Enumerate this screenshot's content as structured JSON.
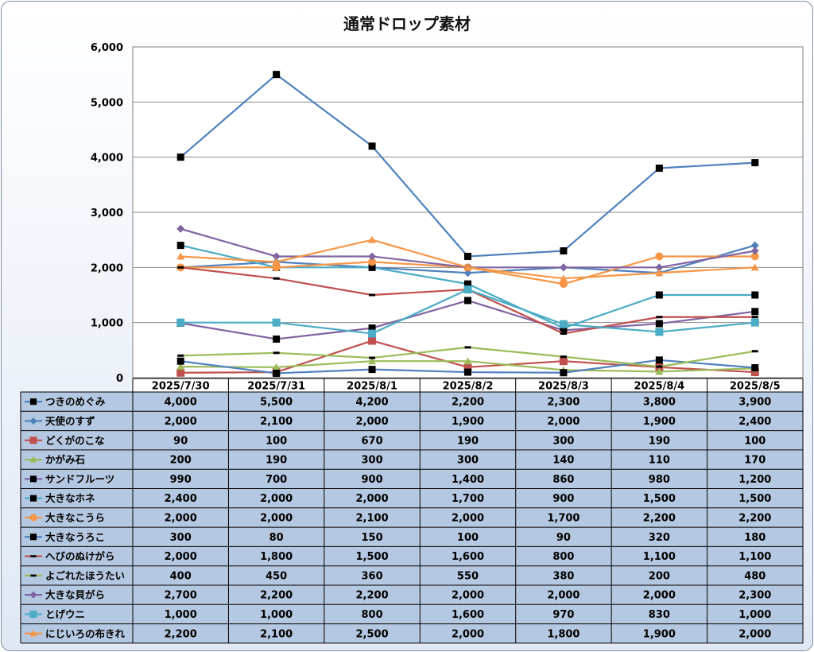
{
  "chart_data": {
    "type": "line",
    "title": "通常ドロップ素材",
    "xlabel": "",
    "ylabel": "",
    "ylim": [
      0,
      6000
    ],
    "yticks": [
      "0",
      "1,000",
      "2,000",
      "3,000",
      "4,000",
      "5,000",
      "6,000"
    ],
    "grid": true,
    "legend": "data-table",
    "categories": [
      "2025/7/30",
      "2025/7/31",
      "2025/8/1",
      "2025/8/2",
      "2025/8/3",
      "2025/8/4",
      "2025/8/5"
    ],
    "series": [
      {
        "name": "つきのめぐみ",
        "color": "#4f81bd",
        "marker": "square-black",
        "values": [
          4000,
          5500,
          4200,
          2200,
          2300,
          3800,
          3900
        ],
        "labels": [
          "4,000",
          "5,500",
          "4,200",
          "2,200",
          "2,300",
          "3,800",
          "3,900"
        ]
      },
      {
        "name": "天使のすず",
        "color": "#4f81bd",
        "marker": "diamond",
        "values": [
          2000,
          2100,
          2000,
          1900,
          2000,
          1900,
          2400
        ],
        "labels": [
          "2,000",
          "2,100",
          "2,000",
          "1,900",
          "2,000",
          "1,900",
          "2,400"
        ]
      },
      {
        "name": "どくがのこな",
        "color": "#c0504d",
        "marker": "square",
        "values": [
          90,
          100,
          670,
          190,
          300,
          190,
          100
        ],
        "labels": [
          "90",
          "100",
          "670",
          "190",
          "300",
          "190",
          "100"
        ]
      },
      {
        "name": "かがみ石",
        "color": "#9bbb59",
        "marker": "triangle",
        "values": [
          200,
          190,
          300,
          300,
          140,
          110,
          170
        ],
        "labels": [
          "200",
          "190",
          "300",
          "300",
          "140",
          "110",
          "170"
        ]
      },
      {
        "name": "サンドフルーツ",
        "color": "#8064a2",
        "marker": "square-black",
        "values": [
          990,
          700,
          900,
          1400,
          860,
          980,
          1200
        ],
        "labels": [
          "990",
          "700",
          "900",
          "1,400",
          "860",
          "980",
          "1,200"
        ]
      },
      {
        "name": "大きなホネ",
        "color": "#4bacc6",
        "marker": "square-black",
        "values": [
          2400,
          2000,
          2000,
          1700,
          900,
          1500,
          1500
        ],
        "labels": [
          "2,400",
          "2,000",
          "2,000",
          "1,700",
          "900",
          "1,500",
          "1,500"
        ]
      },
      {
        "name": "大きなこうら",
        "color": "#f79646",
        "marker": "circle",
        "values": [
          2000,
          2000,
          2100,
          2000,
          1700,
          2200,
          2200
        ],
        "labels": [
          "2,000",
          "2,000",
          "2,100",
          "2,000",
          "1,700",
          "2,200",
          "2,200"
        ]
      },
      {
        "name": "大きなうろこ",
        "color": "#4f81bd",
        "marker": "square-black",
        "values": [
          300,
          80,
          150,
          100,
          90,
          320,
          180
        ],
        "labels": [
          "300",
          "80",
          "150",
          "100",
          "90",
          "320",
          "180"
        ]
      },
      {
        "name": "へびのぬけがら",
        "color": "#c0504d",
        "marker": "dash-black",
        "values": [
          2000,
          1800,
          1500,
          1600,
          800,
          1100,
          1100
        ],
        "labels": [
          "2,000",
          "1,800",
          "1,500",
          "1,600",
          "800",
          "1,100",
          "1,100"
        ]
      },
      {
        "name": "よごれたほうたい",
        "color": "#9bbb59",
        "marker": "dash-black",
        "values": [
          400,
          450,
          360,
          550,
          380,
          200,
          480
        ],
        "labels": [
          "400",
          "450",
          "360",
          "550",
          "380",
          "200",
          "480"
        ]
      },
      {
        "name": "大きな貝がら",
        "color": "#8064a2",
        "marker": "diamond",
        "values": [
          2700,
          2200,
          2200,
          2000,
          2000,
          2000,
          2300
        ],
        "labels": [
          "2,700",
          "2,200",
          "2,200",
          "2,000",
          "2,000",
          "2,000",
          "2,300"
        ]
      },
      {
        "name": "とげウニ",
        "color": "#4bacc6",
        "marker": "square",
        "values": [
          1000,
          1000,
          800,
          1600,
          970,
          830,
          1000
        ],
        "labels": [
          "1,000",
          "1,000",
          "800",
          "1,600",
          "970",
          "830",
          "1,000"
        ]
      },
      {
        "name": "にじいろの布きれ",
        "color": "#f79646",
        "marker": "triangle",
        "values": [
          2200,
          2100,
          2500,
          2000,
          1800,
          1900,
          2000
        ],
        "labels": [
          "2,200",
          "2,100",
          "2,500",
          "2,000",
          "1,800",
          "1,900",
          "2,000"
        ]
      }
    ]
  }
}
